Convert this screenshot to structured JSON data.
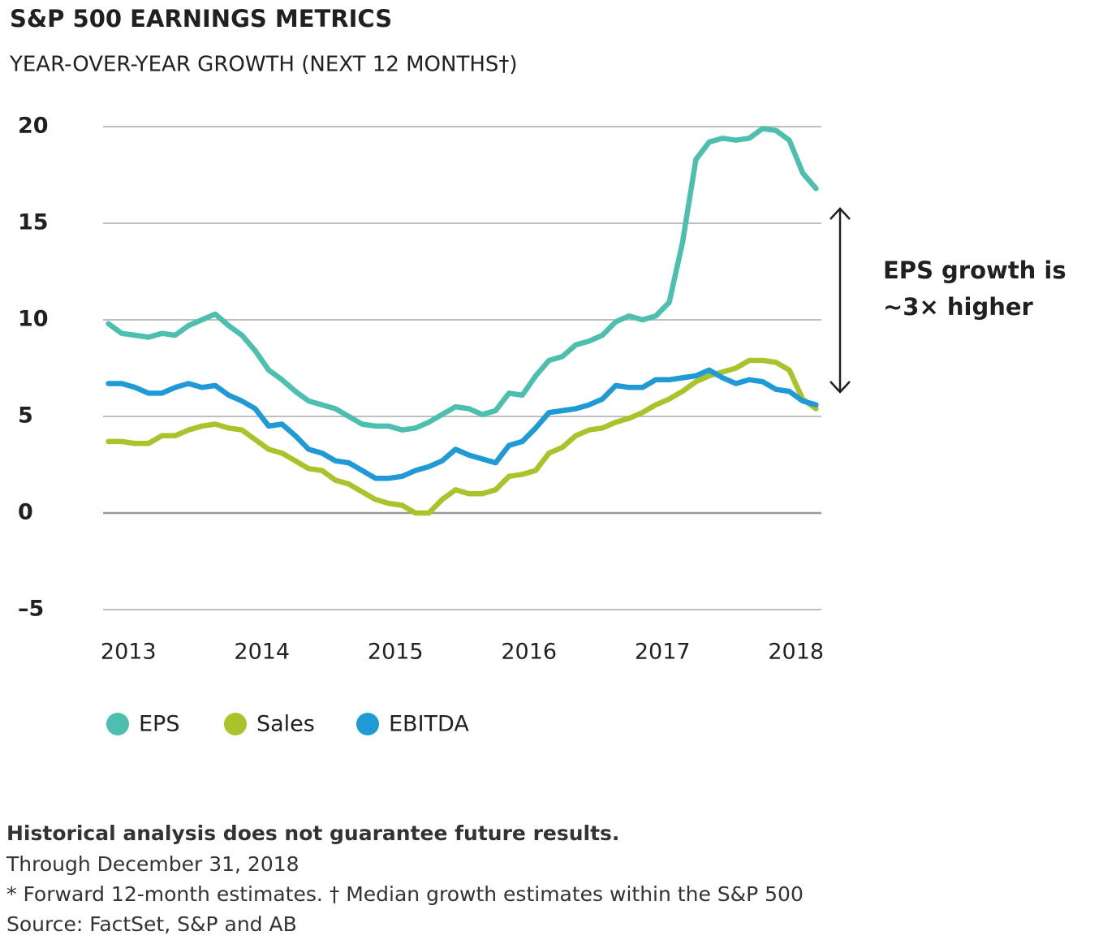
{
  "chart_data": {
    "type": "line",
    "title": "S&P 500 EARNINGS METRICS",
    "subtitle": "YEAR-OVER-YEAR GROWTH (NEXT 12 MONTHS†)",
    "x": [
      2012.85,
      2012.95,
      2013.05,
      2013.15,
      2013.25,
      2013.35,
      2013.45,
      2013.55,
      2013.65,
      2013.75,
      2013.85,
      2013.95,
      2014.05,
      2014.15,
      2014.25,
      2014.35,
      2014.45,
      2014.55,
      2014.65,
      2014.75,
      2014.85,
      2014.95,
      2015.05,
      2015.15,
      2015.25,
      2015.35,
      2015.45,
      2015.55,
      2015.65,
      2015.75,
      2015.85,
      2015.95,
      2016.05,
      2016.15,
      2016.25,
      2016.35,
      2016.45,
      2016.55,
      2016.65,
      2016.75,
      2016.85,
      2016.95,
      2017.05,
      2017.15,
      2017.25,
      2017.35,
      2017.45,
      2017.55,
      2017.65,
      2017.75,
      2017.85,
      2017.95,
      2018.05,
      2018.15
    ],
    "series": [
      {
        "name": "EPS",
        "color": "#4dbfae",
        "values": [
          9.8,
          9.3,
          9.2,
          9.1,
          9.3,
          9.2,
          9.7,
          10.0,
          10.3,
          9.7,
          9.2,
          8.4,
          7.4,
          6.9,
          6.3,
          5.8,
          5.6,
          5.4,
          5.0,
          4.6,
          4.5,
          4.5,
          4.3,
          4.4,
          4.7,
          5.1,
          5.5,
          5.4,
          5.1,
          5.3,
          6.2,
          6.1,
          7.1,
          7.9,
          8.1,
          8.7,
          8.9,
          9.2,
          9.9,
          10.2,
          10.0,
          10.2,
          10.9,
          14.0,
          18.3,
          19.2,
          19.4,
          19.3,
          19.4,
          19.9,
          19.8,
          19.3,
          17.6,
          16.8
        ]
      },
      {
        "name": "Sales",
        "color": "#a9c32a",
        "values": [
          3.7,
          3.7,
          3.6,
          3.6,
          4.0,
          4.0,
          4.3,
          4.5,
          4.6,
          4.4,
          4.3,
          3.8,
          3.3,
          3.1,
          2.7,
          2.3,
          2.2,
          1.7,
          1.5,
          1.1,
          0.7,
          0.5,
          0.4,
          0.0,
          0.0,
          0.7,
          1.2,
          1.0,
          1.0,
          1.2,
          1.9,
          2.0,
          2.2,
          3.1,
          3.4,
          4.0,
          4.3,
          4.4,
          4.7,
          4.9,
          5.2,
          5.6,
          5.9,
          6.3,
          6.8,
          7.1,
          7.3,
          7.5,
          7.9,
          7.9,
          7.8,
          7.4,
          5.9,
          5.4
        ]
      },
      {
        "name": "EBITDA",
        "color": "#1f9ad6",
        "values": [
          6.7,
          6.7,
          6.5,
          6.2,
          6.2,
          6.5,
          6.7,
          6.5,
          6.6,
          6.1,
          5.8,
          5.4,
          4.5,
          4.6,
          4.0,
          3.3,
          3.1,
          2.7,
          2.6,
          2.2,
          1.8,
          1.8,
          1.9,
          2.2,
          2.4,
          2.7,
          3.3,
          3.0,
          2.8,
          2.6,
          3.5,
          3.7,
          4.4,
          5.2,
          5.3,
          5.4,
          5.6,
          5.9,
          6.6,
          6.5,
          6.5,
          6.9,
          6.9,
          7.0,
          7.1,
          7.4,
          7.0,
          6.7,
          6.9,
          6.8,
          6.4,
          6.3,
          5.8,
          5.6
        ]
      }
    ],
    "xlim": [
      2012.81,
      2018.19
    ],
    "xticks": [
      2013,
      2014,
      2015,
      2016,
      2017,
      2018
    ],
    "ylim": [
      -5,
      20
    ],
    "yticks": [
      {
        "value": -5,
        "label": "–5"
      },
      0,
      5,
      10,
      15,
      20
    ],
    "grid": true,
    "legend": "bottom",
    "annotation": [
      "EPS growth is",
      "~3× higher"
    ],
    "notes": [
      "Historical analysis does not guarantee future results.",
      "Through December 31, 2018",
      "* Forward 12-month estimates. † Median growth estimates within the S&P 500",
      "Source: FactSet, S&P and AB"
    ]
  }
}
